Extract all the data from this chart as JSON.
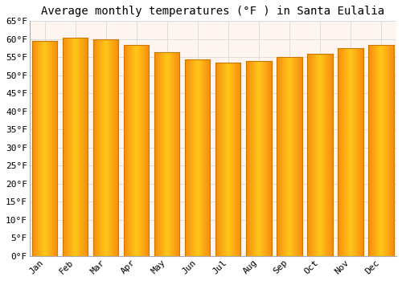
{
  "title": "Average monthly temperatures (°F ) in Santa Eulalia",
  "months": [
    "Jan",
    "Feb",
    "Mar",
    "Apr",
    "May",
    "Jun",
    "Jul",
    "Aug",
    "Sep",
    "Oct",
    "Nov",
    "Dec"
  ],
  "values": [
    59.5,
    60.5,
    60.0,
    58.5,
    56.5,
    54.5,
    53.5,
    54.0,
    55.0,
    56.0,
    57.5,
    58.5
  ],
  "bar_color_center": "#FFB300",
  "bar_color_edge": "#FF8C00",
  "bar_edge_color": "#CC7700",
  "ylim": [
    0,
    65
  ],
  "yticks": [
    0,
    5,
    10,
    15,
    20,
    25,
    30,
    35,
    40,
    45,
    50,
    55,
    60,
    65
  ],
  "background_color": "#FFFFFF",
  "plot_bg_color": "#FFF5F0",
  "grid_color": "#DDDDDD",
  "title_fontsize": 10,
  "tick_fontsize": 8,
  "font_family": "monospace",
  "bar_width": 0.82
}
